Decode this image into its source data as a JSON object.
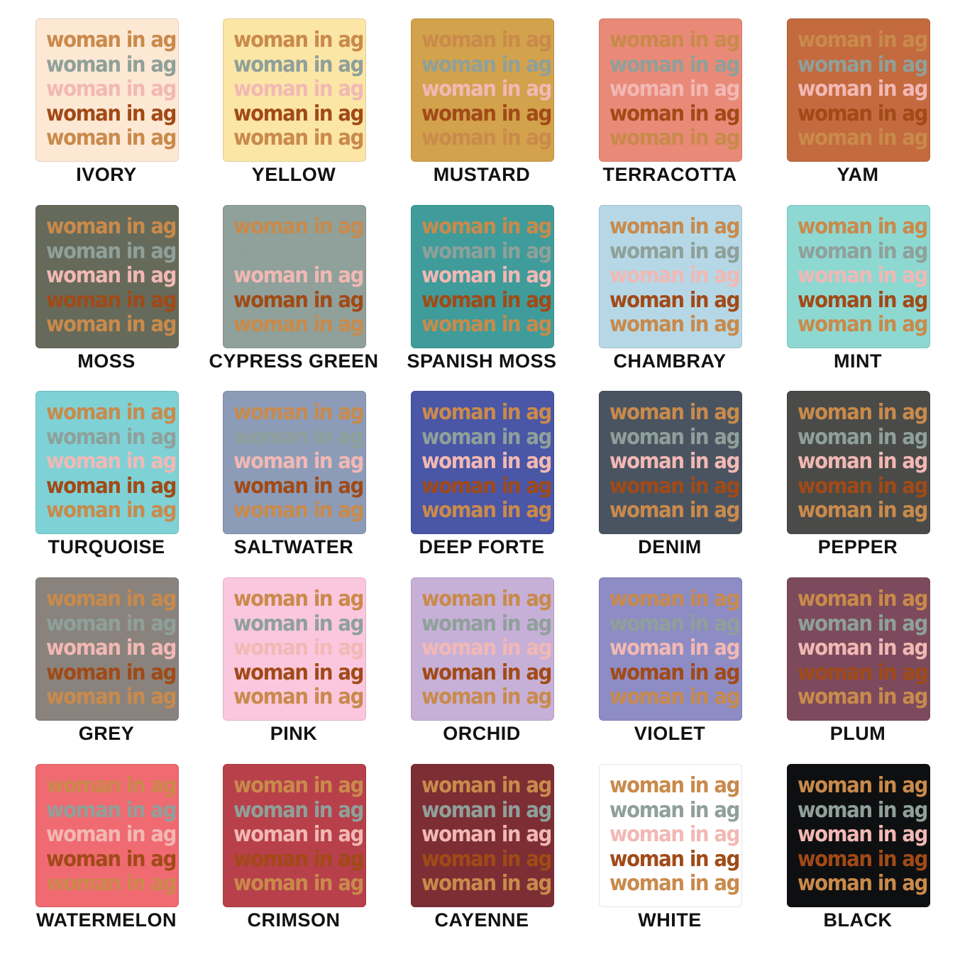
{
  "text_colors": [
    "#c98a4b",
    "#8fa09a",
    "#f2b8b4",
    "#a14a17",
    "#c98a4b"
  ],
  "swatches": [
    {
      "name": "IVORY",
      "bg": "#fde8d4",
      "phrase": "woman in ag"
    },
    {
      "name": "YELLOW",
      "bg": "#fbe6a6",
      "phrase": "woman in ag"
    },
    {
      "name": "MUSTARD",
      "bg": "#d2a24c",
      "phrase": "woman in ag"
    },
    {
      "name": "TERRACOTTA",
      "bg": "#e98a78",
      "phrase": "woman in ag"
    },
    {
      "name": "YAM",
      "bg": "#c46a3f",
      "phrase": "woman in ag"
    },
    {
      "name": "MOSS",
      "bg": "#666a5a",
      "phrase": "woman in ag"
    },
    {
      "name": "CYPRESS GREEN",
      "bg": "#8fa19a",
      "phrase": "woman in ag"
    },
    {
      "name": "SPANISH MOSS",
      "bg": "#3f9c9a",
      "phrase": "woman in ag"
    },
    {
      "name": "CHAMBRAY",
      "bg": "#b6d8e6",
      "phrase": "woman in ag"
    },
    {
      "name": "MINT",
      "bg": "#8ed8d2",
      "phrase": "woman in ag"
    },
    {
      "name": "TURQUOISE",
      "bg": "#7ed2d6",
      "phrase": "woman in ag"
    },
    {
      "name": "SALTWATER",
      "bg": "#8c9cb8",
      "phrase": "woman in ag"
    },
    {
      "name": "DEEP FORTE",
      "bg": "#4a56a6",
      "phrase": "woman in ag"
    },
    {
      "name": "DENIM",
      "bg": "#4a5461",
      "phrase": "woman in ag"
    },
    {
      "name": "PEPPER",
      "bg": "#4a4b49",
      "phrase": "woman in ag"
    },
    {
      "name": "GREY",
      "bg": "#8a837d",
      "phrase": "woman in ag"
    },
    {
      "name": "PINK",
      "bg": "#fbc7df",
      "phrase": "woman in ag"
    },
    {
      "name": "ORCHID",
      "bg": "#c7b0d8",
      "phrase": "woman in ag"
    },
    {
      "name": "VIOLET",
      "bg": "#8e8cc4",
      "phrase": "woman in ag"
    },
    {
      "name": "PLUM",
      "bg": "#7c4a5c",
      "phrase": "woman in ag"
    },
    {
      "name": "WATERMELON",
      "bg": "#f06a72",
      "phrase": "woman in ag"
    },
    {
      "name": "CRIMSON",
      "bg": "#b7404a",
      "phrase": "woman in ag"
    },
    {
      "name": "CAYENNE",
      "bg": "#7c2e34",
      "phrase": "woman in ag"
    },
    {
      "name": "WHITE",
      "bg": "#ffffff",
      "phrase": "woman in ag"
    },
    {
      "name": "BLACK",
      "bg": "#0e0f10",
      "phrase": "woman in ag"
    }
  ]
}
